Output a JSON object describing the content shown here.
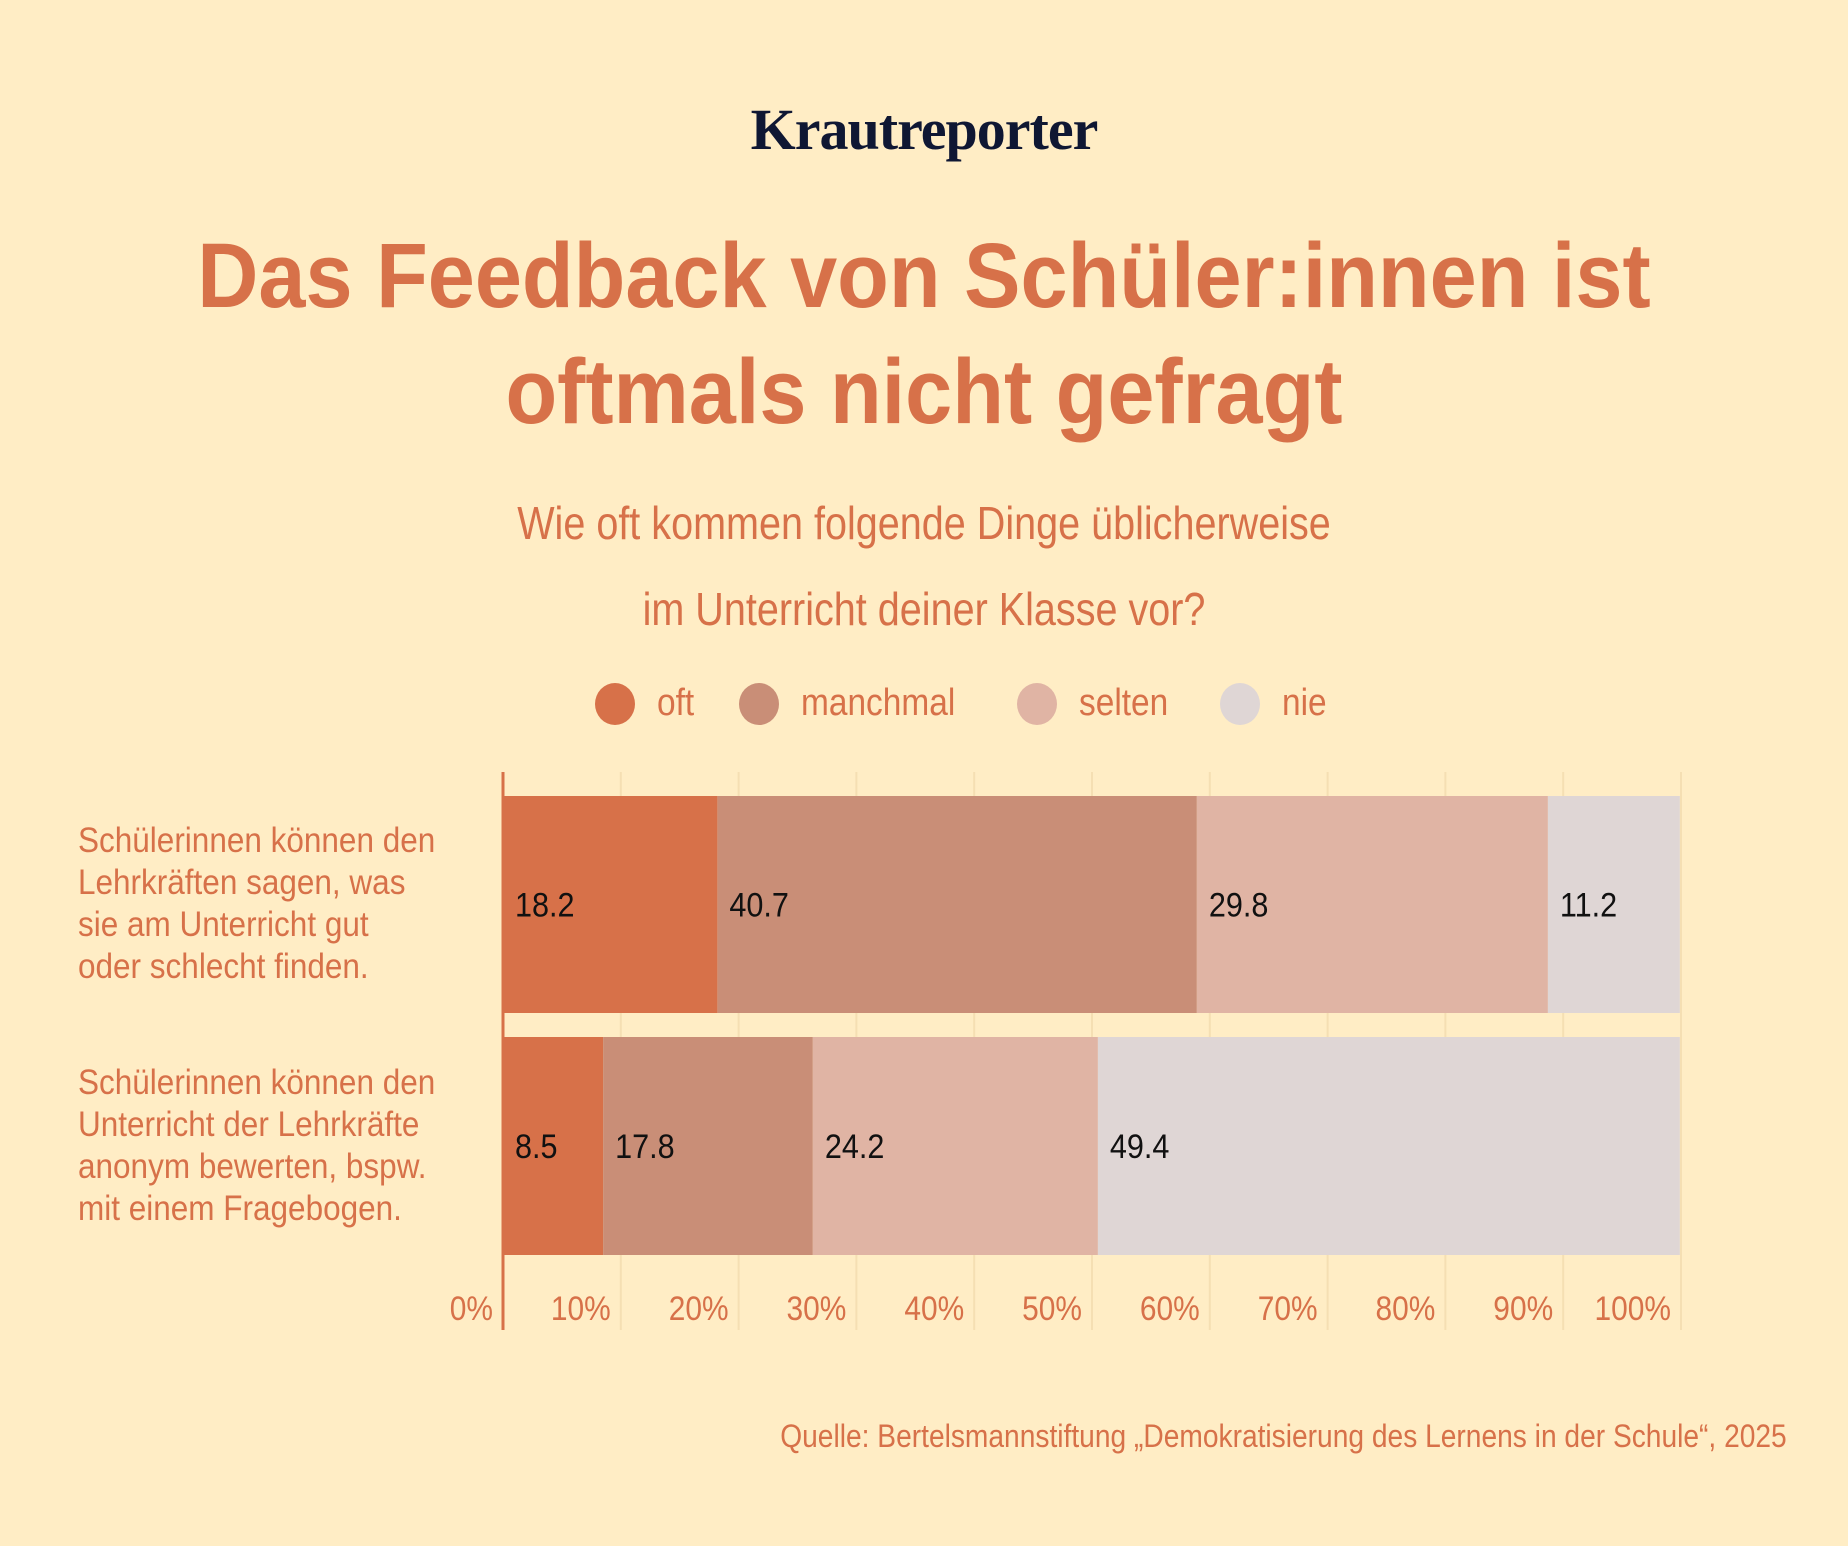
{
  "brand": {
    "logo_text": "Krautreporter",
    "logo_color": "#0F1733",
    "accent_color": "#D77149",
    "background_color": "#FFEDC5"
  },
  "header": {
    "title_line1": "Das Feedback von Schüler:innen ist",
    "title_line2": "oftmals nicht gefragt",
    "subtitle_line1": "Wie oft kommen folgende Dinge üblicherweise",
    "subtitle_line2": "im Unterricht deiner Klasse vor?"
  },
  "chart_data": {
    "type": "bar",
    "orientation": "horizontal",
    "stacked": true,
    "title": "Das Feedback von Schüler:innen ist oftmals nicht gefragt",
    "subtitle": "Wie oft kommen folgende Dinge üblicherweise im Unterricht deiner Klasse vor?",
    "xlabel": "",
    "ylabel": "",
    "xlim": [
      0,
      100
    ],
    "x_ticks": [
      0,
      10,
      20,
      30,
      40,
      50,
      60,
      70,
      80,
      90,
      100
    ],
    "x_tick_labels": [
      "0%",
      "10%",
      "20%",
      "30%",
      "40%",
      "50%",
      "60%",
      "70%",
      "80%",
      "90%",
      "100%"
    ],
    "grid": true,
    "legend_position": "top-center",
    "categories": [
      "Schülerinnen können den Lehrkräften sagen, was sie am Unterricht gut oder schlecht finden.",
      "Schülerinnen können den Unterricht der Lehrkräfte anonym bewerten, bspw. mit einem Fragebogen."
    ],
    "category_lines": [
      [
        "Schülerinnen können den",
        "Lehrkräften sagen, was",
        "sie am Unterricht gut",
        "oder schlecht finden."
      ],
      [
        "Schülerinnen können den",
        "Unterricht der Lehrkräfte",
        "anonym bewerten, bspw.",
        "mit einem Fragebogen."
      ]
    ],
    "series": [
      {
        "name": "oft",
        "color": "#D77149",
        "values": [
          18.2,
          8.5
        ]
      },
      {
        "name": "manchmal",
        "color": "#C98E77",
        "values": [
          40.7,
          17.8
        ]
      },
      {
        "name": "selten",
        "color": "#E0B4A4",
        "values": [
          29.8,
          24.2
        ]
      },
      {
        "name": "nie",
        "color": "#DFD6D5",
        "values": [
          11.2,
          49.4
        ]
      }
    ],
    "data_label_color": "#111111",
    "grid_color": "#F5DFB3"
  },
  "footer": {
    "source": "Quelle: Bertelsmannstiftung „Demokratisierung des Lernens in der Schule“, 2025"
  }
}
